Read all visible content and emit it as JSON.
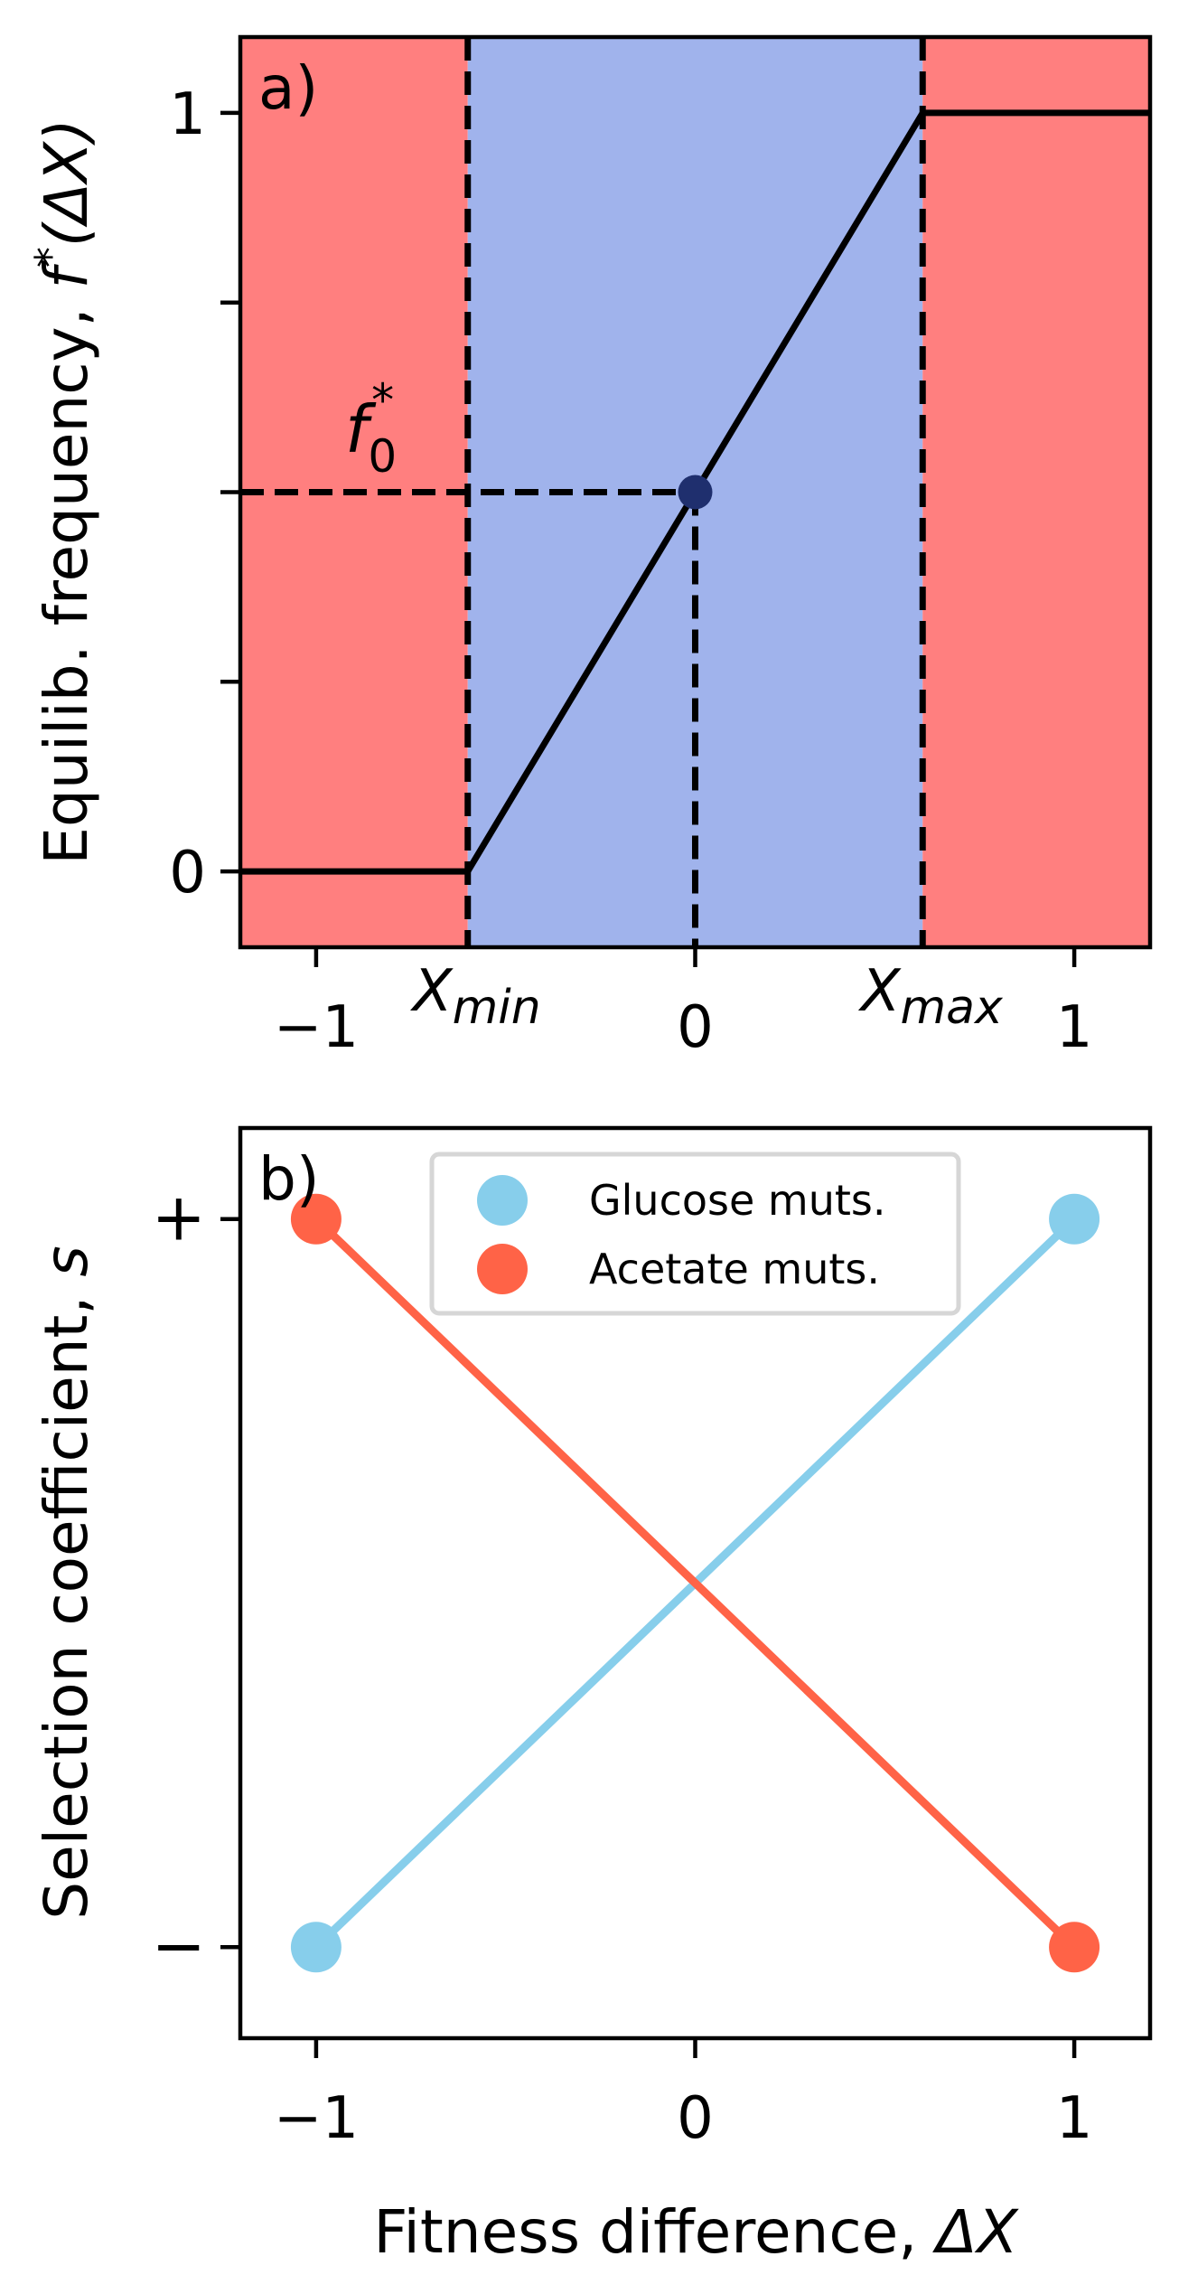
{
  "chart_data": [
    {
      "type": "line",
      "panel_label": "a)",
      "xlabel": "",
      "ylabel": "Equilib. frequency, f*(ΔX)",
      "ylabel_parts": {
        "prefix": "Equilib. frequency, ",
        "f": "f",
        "star": "*",
        "arg": "(ΔX)"
      },
      "xlim": [
        -1.2,
        1.2
      ],
      "ylim": [
        -0.1,
        1.1
      ],
      "x_ticks": [
        {
          "value": -1,
          "label": "−1"
        },
        {
          "value": 0,
          "label": "0"
        },
        {
          "value": 1,
          "label": "1"
        }
      ],
      "y_ticks": [
        {
          "value": 0,
          "label": "0"
        },
        {
          "value": 0.25,
          "label": ""
        },
        {
          "value": 0.5,
          "label": ""
        },
        {
          "value": 0.75,
          "label": ""
        },
        {
          "value": 1,
          "label": "1"
        }
      ],
      "x_markers": [
        {
          "value": -0.6,
          "main": "X",
          "sub": "min"
        },
        {
          "value": 0.6,
          "main": "X",
          "sub": "max"
        }
      ],
      "regions": [
        {
          "x0": -1.2,
          "x1": -0.6,
          "color": "#ff7f7f"
        },
        {
          "x0": -0.6,
          "x1": 0.6,
          "color": "#a0b3ec"
        },
        {
          "x0": 0.6,
          "x1": 1.2,
          "color": "#ff7f7f"
        }
      ],
      "series": [
        {
          "x": [
            -1.2,
            -0.6,
            0.6,
            1.2
          ],
          "y": [
            0,
            0,
            1,
            1
          ],
          "color": "#000000"
        }
      ],
      "point": {
        "x": 0,
        "y": 0.5,
        "color": "#1f2f6e",
        "label_main": "f",
        "label_sub": "0",
        "label_sup": "*"
      },
      "grid": false
    },
    {
      "type": "line",
      "panel_label": "b)",
      "xlabel": "Fitness difference, ΔX",
      "xlabel_parts": {
        "prefix": "Fitness difference, ",
        "var": "ΔX"
      },
      "ylabel": "Selection coefficient, s",
      "ylabel_parts": {
        "prefix": "Selection coefficient, ",
        "var": "s"
      },
      "xlim": [
        -1.2,
        1.2
      ],
      "ylim": [
        -1.25,
        1.25
      ],
      "x_ticks": [
        {
          "value": -1,
          "label": "−1"
        },
        {
          "value": 0,
          "label": "0"
        },
        {
          "value": 1,
          "label": "1"
        }
      ],
      "y_ticks": [
        {
          "value": 1,
          "label": "+"
        },
        {
          "value": -1,
          "label": "−"
        }
      ],
      "series": [
        {
          "name": "Glucose muts.",
          "x": [
            -1,
            1
          ],
          "y": [
            -1,
            1
          ],
          "color": "#87ceeb"
        },
        {
          "name": "Acetate muts.",
          "x": [
            -1,
            1
          ],
          "y": [
            1,
            -1
          ],
          "color": "#ff6347"
        }
      ],
      "legend": "top-center",
      "grid": false
    }
  ]
}
